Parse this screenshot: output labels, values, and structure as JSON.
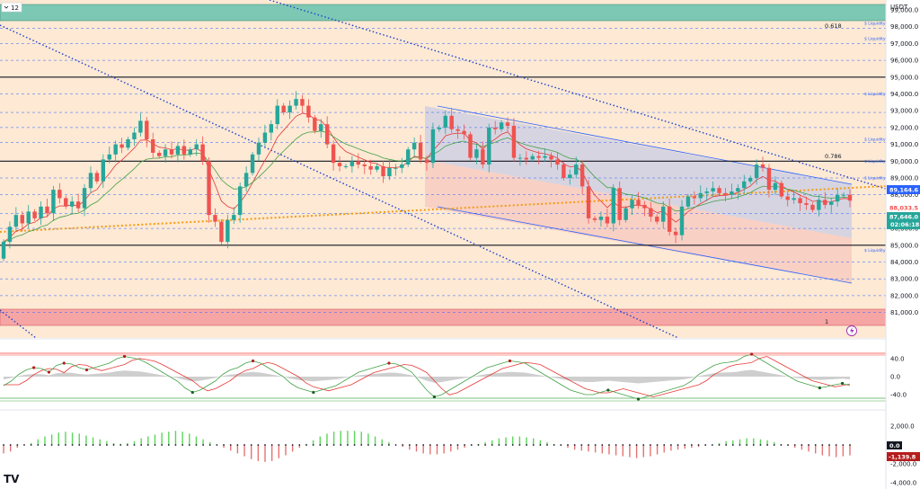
{
  "header": {
    "interval": "12",
    "currency": "USDT"
  },
  "colors": {
    "up": "#26a69a",
    "down": "#ef5350",
    "bg_zone": "#fde9d4",
    "top_zone": "#7cc8b4",
    "bottom_zone": "#f6a5a5",
    "channel_fill": "#c9cce6",
    "channel_red": "#f7c9bf",
    "trend_blue": "#1e40c8",
    "orange": "#f39c12",
    "ema_red": "#e53935",
    "ema_green": "#43a047",
    "macd_up": "#5bd65b",
    "macd_down": "#e57373"
  },
  "price_axis": {
    "ticks": [
      "99,000.0",
      "98,000.0",
      "97,000.0",
      "96,000.0",
      "95,000.0",
      "94,000.0",
      "93,000.0",
      "92,000.0",
      "91,000.0",
      "90,000.0",
      "89,000.0",
      "88,000.0",
      "87,000.0",
      "86,000.0",
      "85,000.0",
      "84,000.0",
      "83,000.0",
      "82,000.0",
      "81,000.0"
    ]
  },
  "osc_axis": {
    "ticks": [
      "40.0",
      "0.0",
      "-40.0"
    ]
  },
  "macd_axis": {
    "ticks": [
      "2,000.0",
      "0.0",
      "-2,000.0",
      "-4,000.0"
    ]
  },
  "fib_labels": {
    "f618": "0.618",
    "f786": "0.786",
    "f1": "1"
  },
  "liquidity_label": "$ Liquidity",
  "price_tags": {
    "level_tag": "89,164.6",
    "last_price": "88,033.5",
    "current": "87,646.0",
    "countdown": "02:06:18",
    "macd_zero": "0.0",
    "macd_value": "-1,139.8"
  },
  "logo": "TV",
  "chart_data": {
    "type": "candlestick",
    "xlabel": "",
    "ylabel": "",
    "ylim": [
      80800,
      99600
    ],
    "open": [
      84200,
      85200,
      86100,
      86800,
      86300,
      87000,
      86600,
      87300,
      86900,
      88300,
      87800,
      87300,
      87600,
      87200,
      88400,
      89300,
      88800,
      90100,
      90400,
      91000,
      90800,
      91300,
      91700,
      92400,
      91300,
      90500,
      90300,
      90700,
      90400,
      90900,
      90400,
      90700,
      91000,
      90000,
      86800,
      86400,
      85200,
      86500,
      86800,
      88500,
      89300,
      90400,
      91100,
      91700,
      92200,
      93300,
      92900,
      93300,
      93700,
      93300,
      92600,
      91800,
      92200,
      91000,
      89900,
      89700,
      89700,
      90000,
      89800,
      89700,
      89500,
      89700,
      89100,
      89600,
      89600,
      89800,
      90700,
      91100,
      90100,
      89900,
      91900,
      92000,
      92700,
      91900,
      91800,
      91600,
      90200,
      90700,
      89800,
      92000,
      91900,
      92300,
      92100,
      90200,
      90200,
      90100,
      90300,
      90200,
      90300,
      90100,
      89800,
      89000,
      89200,
      89800,
      88500,
      86600,
      86500,
      86700,
      86300,
      88400,
      86500,
      87200,
      87700,
      87400,
      87200,
      86700,
      86400,
      87300,
      85800,
      85600,
      87300,
      87900,
      87800,
      88100,
      88200,
      88400,
      88100,
      88000,
      88200,
      88400,
      88800,
      89000,
      89800,
      89600,
      88300,
      88700,
      87900,
      87700,
      87800,
      87500,
      87400,
      87100,
      87700,
      87400,
      87600,
      88000,
      88000
    ],
    "close": [
      85200,
      86100,
      86800,
      86300,
      87000,
      86600,
      87300,
      86900,
      88300,
      87800,
      87300,
      87600,
      87200,
      88400,
      89300,
      88800,
      90100,
      90400,
      91000,
      90800,
      91300,
      91700,
      92400,
      91300,
      90500,
      90300,
      90700,
      90400,
      90900,
      90400,
      90700,
      91000,
      90000,
      86800,
      86400,
      85200,
      86500,
      86800,
      88500,
      89300,
      90400,
      91100,
      91700,
      92200,
      93300,
      92900,
      93300,
      93700,
      93300,
      92600,
      91800,
      92200,
      91000,
      89900,
      89700,
      89700,
      90000,
      89800,
      89700,
      89500,
      89700,
      89100,
      89600,
      89600,
      89800,
      90700,
      91100,
      90100,
      89900,
      91900,
      92000,
      92700,
      91900,
      91800,
      91600,
      90200,
      90700,
      89800,
      92000,
      91900,
      92300,
      92100,
      90200,
      90200,
      90100,
      90300,
      90200,
      90300,
      90100,
      89800,
      89000,
      89200,
      89800,
      88500,
      86600,
      86500,
      86700,
      86300,
      88400,
      86500,
      87200,
      87700,
      87400,
      87200,
      86700,
      86400,
      87300,
      85800,
      85600,
      87300,
      87900,
      87800,
      88100,
      88200,
      88400,
      88100,
      88000,
      88200,
      88400,
      88800,
      89000,
      89800,
      89600,
      88300,
      88700,
      87900,
      87700,
      87800,
      87500,
      87400,
      87100,
      87700,
      87400,
      87600,
      88000,
      88000,
      87650
    ],
    "osc_k": [
      -20,
      -10,
      5,
      15,
      20,
      18,
      10,
      25,
      30,
      28,
      20,
      15,
      20,
      25,
      30,
      40,
      45,
      42,
      38,
      30,
      20,
      10,
      0,
      -10,
      -25,
      -35,
      -30,
      -20,
      -10,
      5,
      15,
      20,
      30,
      35,
      30,
      20,
      10,
      0,
      -15,
      -25,
      -30,
      -35,
      -30,
      -25,
      -20,
      -10,
      0,
      10,
      15,
      20,
      25,
      30,
      28,
      20,
      10,
      -10,
      -30,
      -45,
      -40,
      -30,
      -20,
      -10,
      0,
      10,
      20,
      25,
      30,
      35,
      33,
      30,
      20,
      10,
      0,
      -10,
      -20,
      -30,
      -35,
      -40,
      -40,
      -35,
      -30,
      -35,
      -40,
      -45,
      -50,
      -45,
      -40,
      -35,
      -30,
      -25,
      -20,
      -10,
      5,
      15,
      25,
      30,
      32,
      35,
      45,
      50,
      40,
      30,
      20,
      10,
      0,
      -10,
      -15,
      -20,
      -25,
      -22,
      -18,
      -15,
      -20
    ],
    "macd_hist": [
      -900,
      -700,
      -300,
      0,
      200,
      600,
      900,
      1100,
      1300,
      1400,
      1300,
      1200,
      1000,
      800,
      600,
      400,
      200,
      100,
      200,
      400,
      700,
      900,
      1100,
      1300,
      1400,
      1500,
      1400,
      1200,
      900,
      600,
      300,
      0,
      -300,
      -600,
      -900,
      -1200,
      -1500,
      -1700,
      -1800,
      -1700,
      -1400,
      -1100,
      -700,
      -300,
      100,
      500,
      900,
      1200,
      1400,
      1500,
      1500,
      1500,
      1400,
      1200,
      900,
      600,
      300,
      0,
      -200,
      -500,
      -700,
      -900,
      -1000,
      -1000,
      -900,
      -700,
      -500,
      -300,
      -100,
      100,
      300,
      500,
      700,
      800,
      900,
      900,
      800,
      700,
      500,
      300,
      100,
      -100,
      -300,
      -500,
      -600,
      -700,
      -800,
      -900,
      -1000,
      -1100,
      -1200,
      -1300,
      -1400,
      -1300,
      -1200,
      -1000,
      -800,
      -600,
      -500,
      -400,
      -300,
      -200,
      -100,
      0,
      200,
      400,
      500,
      600,
      700,
      700,
      600,
      500,
      300,
      100,
      -100,
      -300,
      -500,
      -700,
      -900,
      -1100,
      -1200,
      -1300,
      -1200,
      -1100
    ]
  }
}
